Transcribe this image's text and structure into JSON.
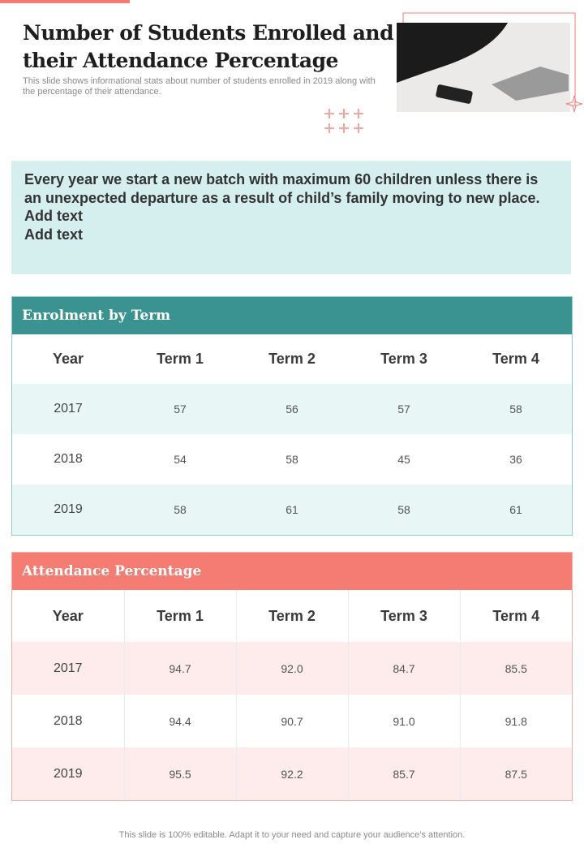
{
  "header": {
    "title": "Number of Students Enrolled and their Attendance Percentage",
    "subtitle": "This slide shows informational stats about number of students enrolled in 2019 along with the percentage of their attendance."
  },
  "note": {
    "lines": [
      "Every year we start a new batch with maximum 60 children unless there is an unexpected departure as a result of child’s family moving to new place.",
      "Add text",
      "Add text"
    ]
  },
  "enrolment": {
    "title": "Enrolment by Term",
    "columns": [
      "Year",
      "Term 1",
      "Term 2",
      "Term 3",
      "Term 4"
    ],
    "rows": [
      [
        "2017",
        "57",
        "56",
        "57",
        "58"
      ],
      [
        "2018",
        "54",
        "58",
        "45",
        "36"
      ],
      [
        "2019",
        "58",
        "61",
        "58",
        "61"
      ]
    ]
  },
  "attendance": {
    "title": "Attendance Percentage",
    "columns": [
      "Year",
      "Term 1",
      "Term 2",
      "Term 3",
      "Term 4"
    ],
    "rows": [
      [
        "2017",
        "94.7",
        "92.0",
        "84.7",
        "85.5"
      ],
      [
        "2018",
        "94.4",
        "90.7",
        "91.0",
        "91.8"
      ],
      [
        "2019",
        "95.5",
        "92.2",
        "85.7",
        "87.5"
      ]
    ]
  },
  "footer": {
    "text": "This slide is 100% editable. Adapt it to your need and capture your audience’s attention."
  }
}
